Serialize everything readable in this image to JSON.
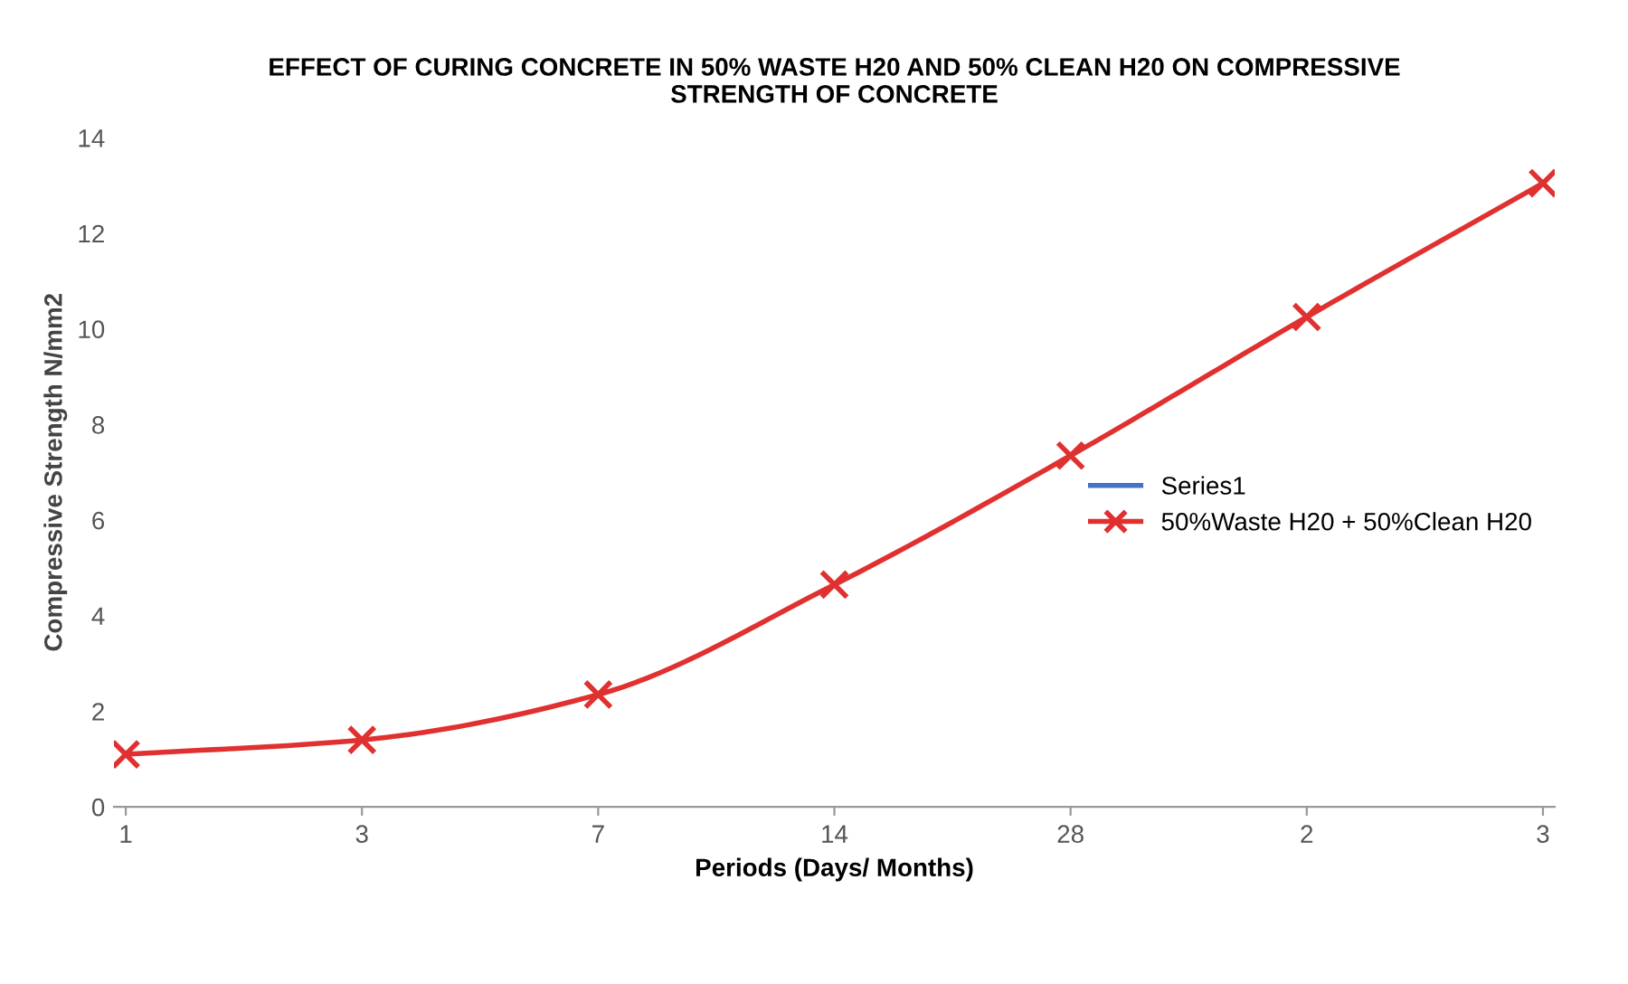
{
  "chart_data": {
    "type": "line",
    "title": "EFFECT OF CURING CONCRETE IN 50% WASTE H20 AND 50% CLEAN H20 ON COMPRESSIVE\nSTRENGTH OF CONCRETE",
    "xlabel": "Periods (Days/ Months)",
    "ylabel": "Compressive Strength N/mm2",
    "categories": [
      "1",
      "3",
      "7",
      "14",
      "28",
      "2",
      "3"
    ],
    "series": [
      {
        "name": "Series1",
        "color": "#4472c4",
        "marker": "none",
        "values": [
          null,
          null,
          null,
          null,
          null,
          null,
          null
        ]
      },
      {
        "name": "50%Waste H20 + 50%Clean H20",
        "color": "#e03030",
        "marker": "cross",
        "values": [
          1.1,
          1.4,
          2.35,
          4.65,
          7.35,
          10.25,
          13.05
        ]
      }
    ],
    "ylim": [
      0,
      14
    ],
    "yticks": [
      0,
      2,
      4,
      6,
      8,
      10,
      12,
      14
    ],
    "grid": false,
    "legend": "right",
    "line_style": "solid"
  }
}
